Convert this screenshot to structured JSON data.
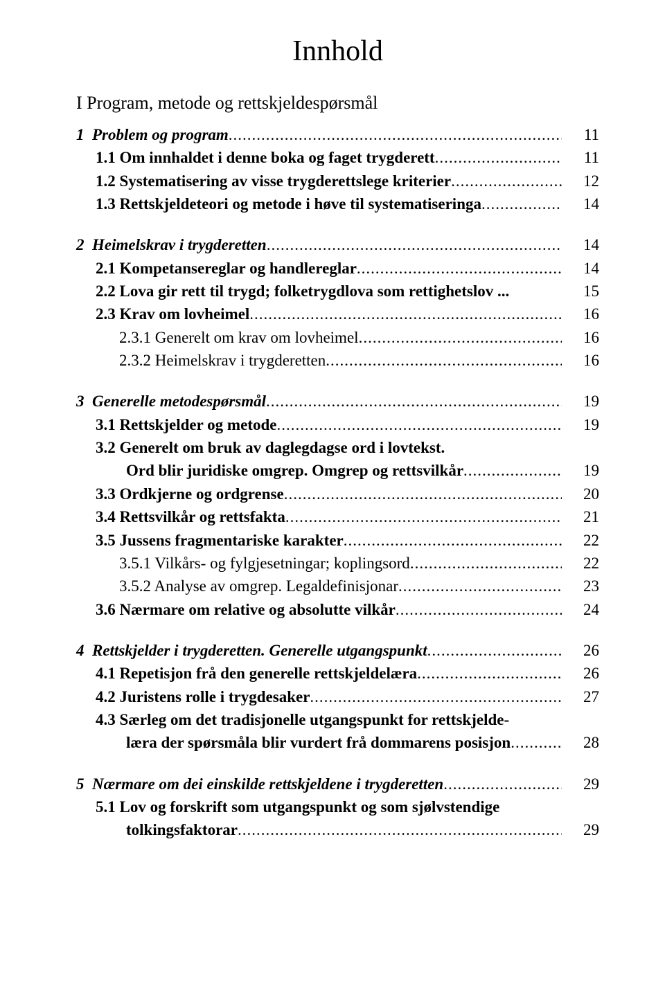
{
  "doc": {
    "title": "Innhold",
    "part_heading": "I  Program, metode og rettskjeldespørsmål",
    "dots": "........................................................................................................................................................................",
    "font": {
      "title_size_pt": 32,
      "body_size_pt": 17
    },
    "colors": {
      "text": "#000000",
      "background": "#ffffff"
    }
  },
  "entries": [
    {
      "kind": "chapter",
      "indent": "ch",
      "num": "1",
      "text": "Problem og program",
      "page": 11
    },
    {
      "kind": "section",
      "indent": "sec",
      "text": "1.1 Om innhaldet i denne boka og faget trygderett",
      "page": 11
    },
    {
      "kind": "section",
      "indent": "sec",
      "text": "1.2 Systematisering av visse trygderettslege kriterier",
      "page": 12
    },
    {
      "kind": "section",
      "indent": "sec",
      "text": "1.3 Rettskjeldeteori og metode i høve til systematiseringa",
      "page": 14
    },
    {
      "kind": "chapter",
      "indent": "ch",
      "gap": true,
      "num": "2",
      "text": "Heimelskrav i trygderetten",
      "page": 14
    },
    {
      "kind": "section",
      "indent": "sec",
      "text": "2.1 Kompetansereglar og handlereglar",
      "page": 14
    },
    {
      "kind": "section",
      "indent": "sec",
      "text": "2.2 Lova gir rett til trygd; folketrygdlova som rettighetslov ...",
      "no_leaders": true,
      "page": 15
    },
    {
      "kind": "section",
      "indent": "sec",
      "text": "2.3 Krav om lovheimel",
      "page": 16
    },
    {
      "kind": "sub",
      "indent": "sub",
      "text": "2.3.1 Generelt om krav om lovheimel",
      "page": 16
    },
    {
      "kind": "sub",
      "indent": "sub",
      "text": "2.3.2 Heimelskrav i trygderetten",
      "page": 16
    },
    {
      "kind": "chapter",
      "indent": "ch",
      "gap": true,
      "num": "3",
      "text": "Generelle metodespørsmål",
      "page": 19
    },
    {
      "kind": "section",
      "indent": "sec",
      "text": "3.1 Rettskjelder og metode",
      "page": 19
    },
    {
      "kind": "section",
      "indent": "sec",
      "text": "3.2 Generelt om bruk av daglegdagse ord i lovtekst.",
      "no_page": true
    },
    {
      "kind": "section",
      "indent": "cont",
      "text": "Ord blir juridiske omgrep. Omgrep og rettsvilkår",
      "page": 19
    },
    {
      "kind": "section",
      "indent": "sec",
      "text": "3.3 Ordkjerne og ordgrense",
      "page": 20
    },
    {
      "kind": "section",
      "indent": "sec",
      "text": "3.4 Rettsvilkår og rettsfakta",
      "page": 21
    },
    {
      "kind": "section",
      "indent": "sec",
      "text": "3.5 Jussens fragmentariske karakter",
      "page": 22
    },
    {
      "kind": "sub",
      "indent": "sub",
      "text": "3.5.1 Vilkårs- og fylgjesetningar; koplingsord",
      "page": 22
    },
    {
      "kind": "sub",
      "indent": "sub",
      "text": "3.5.2 Analyse av omgrep. Legaldefinisjonar",
      "page": 23
    },
    {
      "kind": "section",
      "indent": "sec",
      "text": "3.6 Nærmare om relative og absolutte vilkår",
      "page": 24
    },
    {
      "kind": "chapter",
      "indent": "ch",
      "gap": true,
      "num": "4",
      "text": "Rettskjelder i trygderetten. Generelle utgangspunkt",
      "page": 26
    },
    {
      "kind": "section",
      "indent": "sec",
      "text": "4.1 Repetisjon frå den generelle rettskjeldelæra",
      "page": 26
    },
    {
      "kind": "section",
      "indent": "sec",
      "text": "4.2 Juristens rolle i trygdesaker",
      "page": 27
    },
    {
      "kind": "section",
      "indent": "sec",
      "text": "4.3 Særleg om det tradisjonelle utgangspunkt for rettskjelde-",
      "no_page": true
    },
    {
      "kind": "section",
      "indent": "cont",
      "text": "læra der spørsmåla blir vurdert frå dommarens posisjon",
      "page": 28,
      "tight_leaders": true
    },
    {
      "kind": "chapter",
      "indent": "ch",
      "gap": true,
      "num": "5",
      "text": "Nærmare om dei einskilde rettskjeldene i trygderetten",
      "page": 29
    },
    {
      "kind": "section",
      "indent": "sec",
      "text": "5.1 Lov og forskrift som utgangspunkt og som sjølvstendige",
      "no_page": true
    },
    {
      "kind": "section",
      "indent": "cont",
      "text": "tolkingsfaktorar",
      "page": 29
    }
  ]
}
